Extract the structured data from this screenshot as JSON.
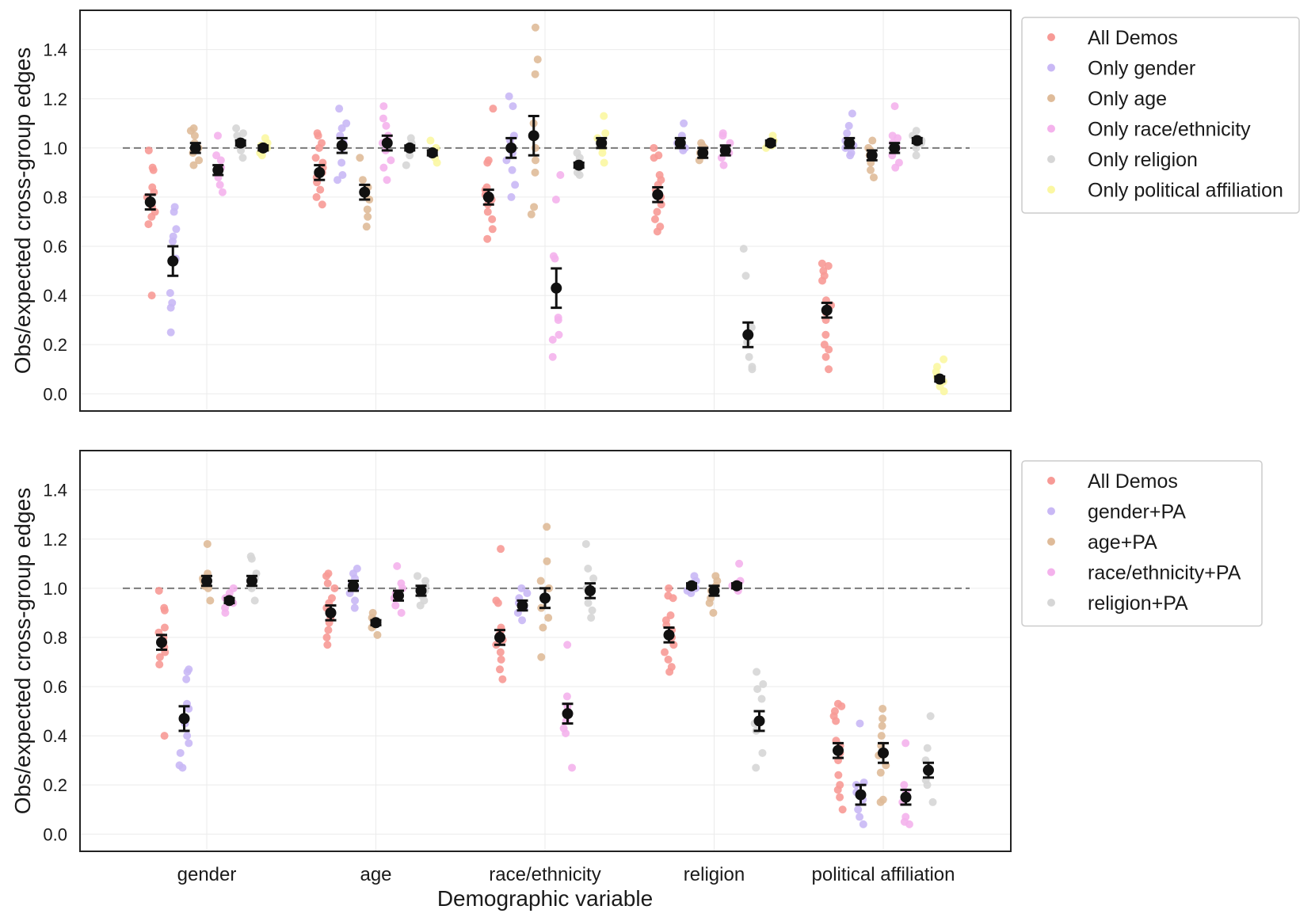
{
  "chart_data": [
    {
      "type": "scatter",
      "title": "",
      "xlabel": "",
      "ylabel": "Obs/expected cross-group edges",
      "ylim": [
        -0.07,
        1.56
      ],
      "yticks": [
        "0.0",
        "0.2",
        "0.4",
        "0.6",
        "0.8",
        "1.0",
        "1.2",
        "1.4"
      ],
      "categories": [
        "gender",
        "age",
        "race/ethnicity",
        "religion",
        "political affiliation"
      ],
      "reference_line": 1.0,
      "grid": true,
      "legend_position": "outside-right-top",
      "series": [
        {
          "name": "All Demos",
          "color": "#f79a96",
          "means": [
            0.78,
            0.9,
            0.8,
            0.81,
            0.34
          ],
          "err": [
            0.03,
            0.03,
            0.03,
            0.03,
            0.03
          ],
          "points": [
            [
              0.4,
              0.69,
              0.72,
              0.74,
              0.76,
              0.78,
              0.8,
              0.82,
              0.84,
              0.91,
              0.92,
              0.99
            ],
            [
              0.77,
              0.8,
              0.83,
              0.86,
              0.88,
              0.9,
              0.92,
              0.94,
              0.96,
              1.0,
              1.02,
              1.05,
              1.06
            ],
            [
              0.63,
              0.67,
              0.71,
              0.74,
              0.77,
              0.79,
              0.81,
              0.83,
              0.84,
              0.94,
              0.95,
              1.16
            ],
            [
              0.66,
              0.68,
              0.71,
              0.74,
              0.77,
              0.8,
              0.83,
              0.85,
              0.87,
              0.89,
              0.96,
              0.97,
              1.0
            ],
            [
              0.1,
              0.15,
              0.18,
              0.2,
              0.24,
              0.3,
              0.33,
              0.36,
              0.38,
              0.46,
              0.48,
              0.5,
              0.52,
              0.53
            ]
          ]
        },
        {
          "name": "Only gender",
          "color": "#c9b8f5",
          "means": [
            0.54,
            1.01,
            1.0,
            1.02,
            1.02
          ],
          "err": [
            0.06,
            0.03,
            0.04,
            0.02,
            0.02
          ],
          "points": [
            [
              0.25,
              0.35,
              0.37,
              0.41,
              0.55,
              0.62,
              0.64,
              0.67,
              0.74,
              0.76
            ],
            [
              0.87,
              0.89,
              0.94,
              1.0,
              1.02,
              1.05,
              1.08,
              1.1,
              1.16
            ],
            [
              0.8,
              0.85,
              0.91,
              0.95,
              0.98,
              1.0,
              1.03,
              1.05,
              1.17,
              1.21
            ],
            [
              0.99,
              1.0,
              1.01,
              1.02,
              1.03,
              1.05,
              1.1
            ],
            [
              0.97,
              0.98,
              1.0,
              1.01,
              1.03,
              1.06,
              1.09,
              1.14
            ]
          ]
        },
        {
          "name": "Only age",
          "color": "#dfbb99",
          "means": [
            1.0,
            0.82,
            1.05,
            0.98,
            0.97
          ],
          "err": [
            0.02,
            0.03,
            0.08,
            0.02,
            0.02
          ],
          "points": [
            [
              0.93,
              0.95,
              0.98,
              1.0,
              1.02,
              1.05,
              1.07,
              1.08
            ],
            [
              0.68,
              0.72,
              0.75,
              0.79,
              0.82,
              0.84,
              0.87,
              0.96
            ],
            [
              0.73,
              0.76,
              0.9,
              0.95,
              1.0,
              1.1,
              1.3,
              1.36,
              1.49
            ],
            [
              0.95,
              0.97,
              0.98,
              1.0,
              1.01,
              1.02
            ],
            [
              0.88,
              0.91,
              0.94,
              0.97,
              0.99,
              1.0,
              1.03
            ]
          ]
        },
        {
          "name": "Only race/ethnicity",
          "color": "#f4b2ec",
          "means": [
            0.91,
            1.02,
            0.43,
            0.99,
            1.0
          ],
          "err": [
            0.02,
            0.03,
            0.08,
            0.02,
            0.02
          ],
          "points": [
            [
              0.82,
              0.85,
              0.88,
              0.92,
              0.95,
              0.97,
              1.05
            ],
            [
              0.87,
              0.92,
              0.95,
              0.99,
              1.02,
              1.05,
              1.09,
              1.12,
              1.17
            ],
            [
              0.15,
              0.22,
              0.24,
              0.3,
              0.31,
              0.55,
              0.56,
              0.79,
              0.89
            ],
            [
              0.93,
              0.96,
              0.98,
              1.0,
              1.02,
              1.05,
              1.06
            ],
            [
              0.92,
              0.94,
              0.97,
              1.0,
              1.02,
              1.04,
              1.05,
              1.17
            ]
          ]
        },
        {
          "name": "Only religion",
          "color": "#d6d6d6",
          "means": [
            1.02,
            1.0,
            0.93,
            0.24,
            1.03
          ],
          "err": [
            0.01,
            0.01,
            0.01,
            0.05,
            0.01
          ],
          "points": [
            [
              0.96,
              0.99,
              1.01,
              1.02,
              1.03,
              1.05,
              1.06,
              1.08
            ],
            [
              0.93,
              0.97,
              0.99,
              1.0,
              1.02,
              1.04
            ],
            [
              0.89,
              0.9,
              0.92,
              0.94,
              0.96,
              0.98
            ],
            [
              0.1,
              0.11,
              0.15,
              0.21,
              0.27,
              0.48,
              0.59
            ],
            [
              0.97,
              1.0,
              1.02,
              1.03,
              1.05,
              1.07
            ]
          ]
        },
        {
          "name": "Only political affiliation",
          "color": "#fbf7a2",
          "means": [
            1.0,
            0.98,
            1.02,
            1.02,
            0.06
          ],
          "err": [
            0.01,
            0.01,
            0.02,
            0.01,
            0.01
          ],
          "points": [
            [
              0.97,
              0.98,
              1.0,
              1.01,
              1.02,
              1.04
            ],
            [
              0.94,
              0.96,
              0.98,
              0.99,
              1.0,
              1.03
            ],
            [
              0.94,
              0.98,
              1.0,
              1.02,
              1.04,
              1.06,
              1.13
            ],
            [
              1.0,
              1.01,
              1.02,
              1.03,
              1.05
            ],
            [
              0.01,
              0.03,
              0.05,
              0.07,
              0.09,
              0.11,
              0.14
            ]
          ]
        }
      ]
    },
    {
      "type": "scatter",
      "title": "",
      "xlabel": "Demographic variable",
      "ylabel": "Obs/expected cross-group edges",
      "ylim": [
        -0.07,
        1.56
      ],
      "yticks": [
        "0.0",
        "0.2",
        "0.4",
        "0.6",
        "0.8",
        "1.0",
        "1.2",
        "1.4"
      ],
      "categories": [
        "gender",
        "age",
        "race/ethnicity",
        "religion",
        "political affiliation"
      ],
      "reference_line": 1.0,
      "grid": true,
      "legend_position": "outside-right-top",
      "series": [
        {
          "name": "All Demos",
          "color": "#f79a96",
          "means": [
            0.78,
            0.9,
            0.8,
            0.81,
            0.34
          ],
          "err": [
            0.03,
            0.03,
            0.03,
            0.03,
            0.03
          ],
          "points": [
            [
              0.4,
              0.69,
              0.72,
              0.74,
              0.76,
              0.78,
              0.8,
              0.82,
              0.84,
              0.91,
              0.92,
              0.99
            ],
            [
              0.77,
              0.8,
              0.83,
              0.86,
              0.88,
              0.9,
              0.92,
              0.94,
              0.96,
              1.0,
              1.02,
              1.05,
              1.06
            ],
            [
              0.63,
              0.67,
              0.71,
              0.74,
              0.77,
              0.79,
              0.81,
              0.83,
              0.84,
              0.94,
              0.95,
              1.16
            ],
            [
              0.66,
              0.68,
              0.71,
              0.74,
              0.77,
              0.8,
              0.83,
              0.85,
              0.87,
              0.89,
              0.96,
              0.97,
              1.0
            ],
            [
              0.1,
              0.15,
              0.18,
              0.2,
              0.24,
              0.3,
              0.33,
              0.36,
              0.38,
              0.46,
              0.48,
              0.5,
              0.52,
              0.53
            ]
          ]
        },
        {
          "name": "gender+PA",
          "color": "#c9b8f5",
          "means": [
            0.47,
            1.01,
            0.93,
            1.01,
            0.16
          ],
          "err": [
            0.05,
            0.02,
            0.02,
            0.01,
            0.04
          ],
          "points": [
            [
              0.27,
              0.28,
              0.33,
              0.37,
              0.4,
              0.45,
              0.51,
              0.53,
              0.63,
              0.66,
              0.67
            ],
            [
              0.92,
              0.95,
              0.98,
              1.0,
              1.02,
              1.04,
              1.06,
              1.08
            ],
            [
              0.87,
              0.9,
              0.92,
              0.94,
              0.96,
              0.98,
              1.0
            ],
            [
              0.98,
              0.99,
              1.0,
              1.01,
              1.02,
              1.03,
              1.05
            ],
            [
              0.04,
              0.07,
              0.1,
              0.14,
              0.17,
              0.2,
              0.21,
              0.45
            ]
          ]
        },
        {
          "name": "age+PA",
          "color": "#dfbb99",
          "means": [
            1.03,
            0.86,
            0.96,
            0.99,
            0.33
          ],
          "err": [
            0.02,
            0.01,
            0.04,
            0.02,
            0.04
          ],
          "points": [
            [
              0.95,
              1.0,
              1.01,
              1.03,
              1.04,
              1.06,
              1.18
            ],
            [
              0.81,
              0.84,
              0.85,
              0.87,
              0.88,
              0.9
            ],
            [
              0.72,
              0.84,
              0.88,
              0.92,
              0.96,
              1.0,
              1.03,
              1.11,
              1.25
            ],
            [
              0.9,
              0.94,
              0.96,
              0.99,
              1.01,
              1.03,
              1.05
            ],
            [
              0.13,
              0.14,
              0.25,
              0.28,
              0.32,
              0.36,
              0.4,
              0.44,
              0.47,
              0.51
            ]
          ]
        },
        {
          "name": "race/ethnicity+PA",
          "color": "#f4b2ec",
          "means": [
            0.95,
            0.97,
            0.49,
            1.01,
            0.15
          ],
          "err": [
            0.01,
            0.02,
            0.04,
            0.01,
            0.03
          ],
          "points": [
            [
              0.9,
              0.92,
              0.94,
              0.96,
              0.98,
              1.0
            ],
            [
              0.9,
              0.93,
              0.96,
              0.98,
              1.0,
              1.02,
              1.09
            ],
            [
              0.27,
              0.41,
              0.43,
              0.46,
              0.49,
              0.52,
              0.56,
              0.77
            ],
            [
              0.99,
              1.0,
              1.01,
              1.02,
              1.03,
              1.1
            ],
            [
              0.04,
              0.05,
              0.07,
              0.13,
              0.17,
              0.2,
              0.37
            ]
          ]
        },
        {
          "name": "religion+PA",
          "color": "#d6d6d6",
          "means": [
            1.03,
            0.99,
            0.99,
            0.46,
            0.26
          ],
          "err": [
            0.02,
            0.02,
            0.03,
            0.04,
            0.03
          ],
          "points": [
            [
              0.95,
              1.0,
              1.02,
              1.04,
              1.06,
              1.12,
              1.13
            ],
            [
              0.93,
              0.95,
              0.97,
              0.99,
              1.01,
              1.03,
              1.05
            ],
            [
              0.88,
              0.91,
              0.94,
              0.97,
              1.0,
              1.04,
              1.08,
              1.18
            ],
            [
              0.27,
              0.33,
              0.42,
              0.45,
              0.55,
              0.59,
              0.61,
              0.66
            ],
            [
              0.13,
              0.2,
              0.22,
              0.25,
              0.3,
              0.35,
              0.48
            ]
          ]
        }
      ]
    }
  ]
}
